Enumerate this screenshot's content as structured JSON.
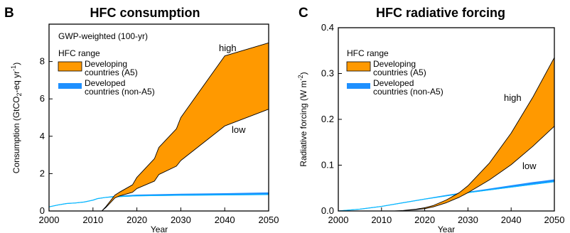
{
  "colors": {
    "developing_fill": "#ff9900",
    "developed_fill": "#1e90ff",
    "developed_line": "#00bfff",
    "outline": "#000000"
  },
  "chart_data": [
    {
      "panel": "B",
      "type": "area",
      "title": "HFC consumption",
      "subtitle": "GWP-weighted (100-yr)",
      "xlabel": "Year",
      "ylabel": "Consumption (GtCO2-eq yr-1)",
      "ylabel_parts": {
        "main": "Consumption (GtCO",
        "sub": "2",
        "mid": "-eq yr",
        "sup": "-1",
        "end": ")"
      },
      "xlim": [
        2000,
        2050
      ],
      "ylim": [
        0,
        10
      ],
      "xticks": [
        2000,
        2010,
        2020,
        2030,
        2040,
        2050
      ],
      "yticks": [
        0,
        2,
        4,
        6,
        8
      ],
      "legend": {
        "title": "HFC range",
        "position": "top-left",
        "entries": [
          "Developing countries (A5)",
          "Developed countries (non-A5)"
        ],
        "entry_lines": [
          [
            "Developing",
            "countries (A5)"
          ],
          [
            "Developed",
            "countries (non-A5)"
          ]
        ]
      },
      "annotations": {
        "high": "high",
        "low": "low"
      },
      "series": [
        {
          "name": "Developing countries (A5)",
          "kind": "band",
          "x": [
            2012,
            2013,
            2014,
            2015,
            2016,
            2019,
            2020,
            2024,
            2025,
            2029,
            2030,
            2040,
            2050
          ],
          "high": [
            0.0,
            0.25,
            0.55,
            0.85,
            1.0,
            1.4,
            1.8,
            2.8,
            3.4,
            4.4,
            5.0,
            8.3,
            9.0
          ],
          "low": [
            0.0,
            0.2,
            0.45,
            0.7,
            0.8,
            1.0,
            1.2,
            1.6,
            1.95,
            2.4,
            2.7,
            4.55,
            5.45
          ]
        },
        {
          "name": "Developed countries (non-A5)",
          "kind": "band",
          "x": [
            2000,
            2002,
            2004,
            2006,
            2008,
            2010,
            2011,
            2013,
            2015,
            2020,
            2030,
            2040,
            2050
          ],
          "high": [
            0.22,
            0.32,
            0.4,
            0.43,
            0.48,
            0.58,
            0.66,
            0.73,
            0.78,
            0.85,
            0.9,
            0.93,
            0.97
          ],
          "low": [
            0.22,
            0.32,
            0.4,
            0.43,
            0.48,
            0.58,
            0.66,
            0.73,
            0.76,
            0.81,
            0.84,
            0.86,
            0.88
          ]
        }
      ]
    },
    {
      "panel": "C",
      "type": "area",
      "title": "HFC radiative forcing",
      "xlabel": "Year",
      "ylabel": "Radiative forcing (W m-2)",
      "ylabel_parts": {
        "main": "Radiative forcing (W m",
        "sup": "-2",
        "end": ")"
      },
      "xlim": [
        2000,
        2050
      ],
      "ylim": [
        0,
        0.4
      ],
      "xticks": [
        2000,
        2010,
        2020,
        2030,
        2040,
        2050
      ],
      "yticks": [
        0.0,
        0.1,
        0.2,
        0.3,
        0.4
      ],
      "ytick_labels": [
        "0.0",
        "0.1",
        "0.2",
        "0.3",
        "0.4"
      ],
      "legend": {
        "title": "HFC range",
        "position": "top-left",
        "entries": [
          "Developing countries (A5)",
          "Developed countries (non-A5)"
        ],
        "entry_lines": [
          [
            "Developing",
            "countries (A5)"
          ],
          [
            "Developed",
            "countries (non-A5)"
          ]
        ]
      },
      "annotations": {
        "high": "high",
        "low": "low"
      },
      "series": [
        {
          "name": "Developing countries (A5)",
          "kind": "band",
          "x": [
            2013,
            2015,
            2018,
            2020,
            2022,
            2025,
            2028,
            2030,
            2035,
            2040,
            2045,
            2050
          ],
          "high": [
            0.0,
            0.001,
            0.004,
            0.007,
            0.012,
            0.024,
            0.04,
            0.055,
            0.105,
            0.17,
            0.248,
            0.335
          ],
          "low": [
            0.0,
            0.001,
            0.003,
            0.005,
            0.009,
            0.018,
            0.03,
            0.04,
            0.068,
            0.101,
            0.141,
            0.185
          ]
        },
        {
          "name": "Developed countries (non-A5)",
          "kind": "band",
          "x": [
            2000,
            2005,
            2010,
            2015,
            2020,
            2025,
            2030,
            2035,
            2040,
            2045,
            2050
          ],
          "high": [
            0.0,
            0.004,
            0.01,
            0.018,
            0.026,
            0.034,
            0.041,
            0.048,
            0.055,
            0.062,
            0.068
          ],
          "low": [
            0.0,
            0.004,
            0.01,
            0.018,
            0.026,
            0.033,
            0.04,
            0.046,
            0.052,
            0.058,
            0.064
          ]
        }
      ]
    }
  ]
}
